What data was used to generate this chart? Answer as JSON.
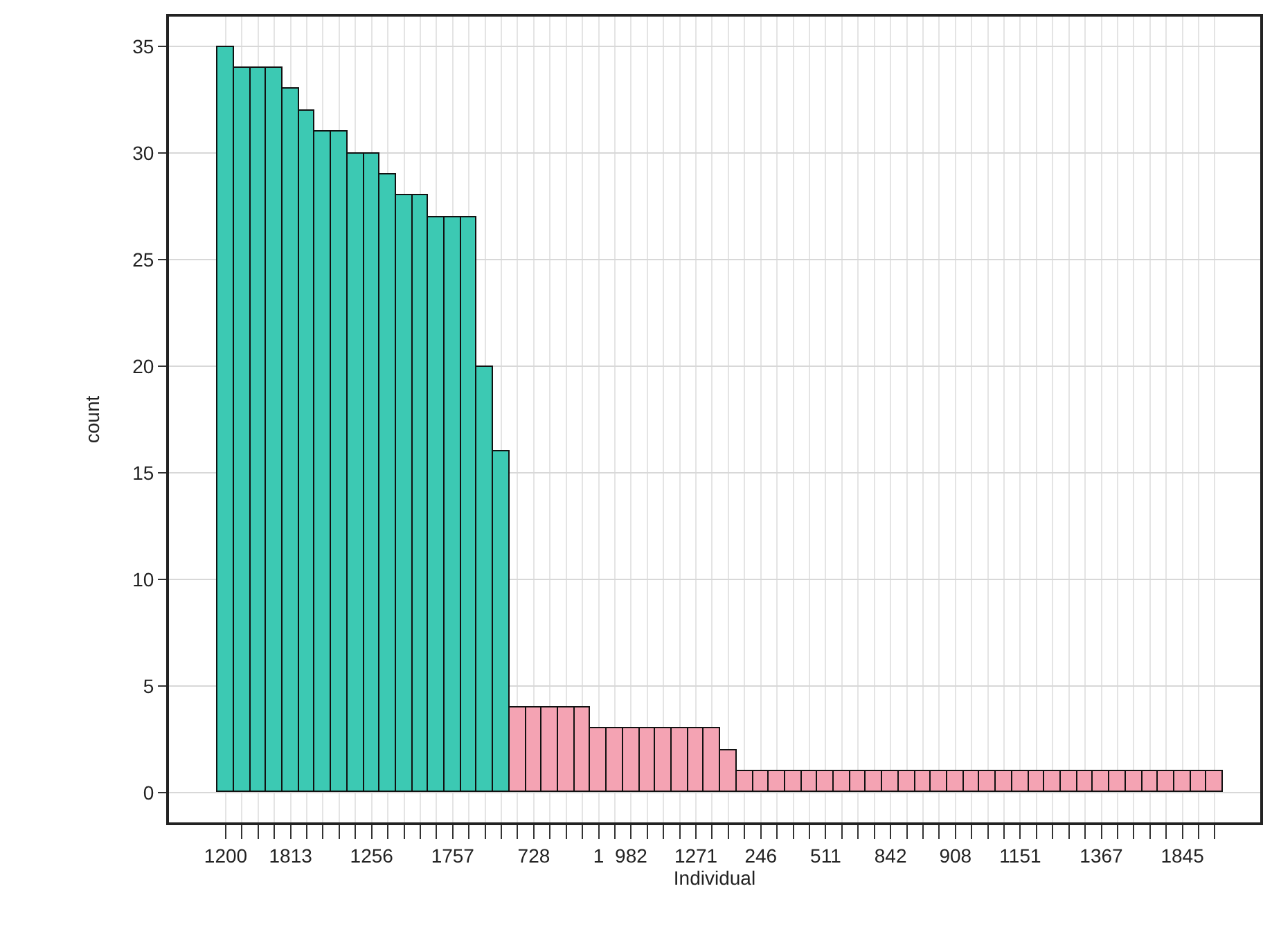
{
  "chart_data": {
    "type": "bar",
    "xlabel": "Individual",
    "ylabel": "count",
    "categories": [
      "1200",
      null,
      null,
      null,
      "1813",
      null,
      null,
      null,
      null,
      "1256",
      null,
      null,
      null,
      null,
      "1757",
      null,
      null,
      null,
      null,
      "728",
      null,
      null,
      null,
      "1",
      null,
      "982",
      null,
      null,
      null,
      "1271",
      null,
      null,
      null,
      "246",
      null,
      null,
      null,
      "511",
      null,
      null,
      null,
      "842",
      null,
      null,
      null,
      "908",
      null,
      null,
      null,
      "1151",
      null,
      null,
      null,
      null,
      "1367",
      null,
      null,
      null,
      null,
      "1845",
      null,
      null
    ],
    "values": [
      35,
      34,
      34,
      34,
      33,
      32,
      31,
      31,
      30,
      30,
      29,
      28,
      28,
      27,
      27,
      27,
      20,
      16,
      4,
      4,
      4,
      4,
      4,
      3,
      3,
      3,
      3,
      3,
      3,
      3,
      3,
      2,
      1,
      1,
      1,
      1,
      1,
      1,
      1,
      1,
      1,
      1,
      1,
      1,
      1,
      1,
      1,
      1,
      1,
      1,
      1,
      1,
      1,
      1,
      1,
      1,
      1,
      1,
      1,
      1,
      1,
      1
    ],
    "colors": [
      "#3cc9b3",
      "#3cc9b3",
      "#3cc9b3",
      "#3cc9b3",
      "#3cc9b3",
      "#3cc9b3",
      "#3cc9b3",
      "#3cc9b3",
      "#3cc9b3",
      "#3cc9b3",
      "#3cc9b3",
      "#3cc9b3",
      "#3cc9b3",
      "#3cc9b3",
      "#3cc9b3",
      "#3cc9b3",
      "#3cc9b3",
      "#3cc9b3",
      "#f4a3b3",
      "#f4a3b3",
      "#f4a3b3",
      "#f4a3b3",
      "#f4a3b3",
      "#f4a3b3",
      "#f4a3b3",
      "#f4a3b3",
      "#f4a3b3",
      "#f4a3b3",
      "#f4a3b3",
      "#f4a3b3",
      "#f4a3b3",
      "#f4a3b3",
      "#f4a3b3",
      "#f4a3b3",
      "#f4a3b3",
      "#f4a3b3",
      "#f4a3b3",
      "#f4a3b3",
      "#f4a3b3",
      "#f4a3b3",
      "#f4a3b3",
      "#f4a3b3",
      "#f4a3b3",
      "#f4a3b3",
      "#f4a3b3",
      "#f4a3b3",
      "#f4a3b3",
      "#f4a3b3",
      "#f4a3b3",
      "#f4a3b3",
      "#f4a3b3",
      "#f4a3b3",
      "#f4a3b3",
      "#f4a3b3",
      "#f4a3b3",
      "#f4a3b3",
      "#f4a3b3",
      "#f4a3b3",
      "#f4a3b3",
      "#f4a3b3",
      "#f4a3b3",
      "#f4a3b3"
    ],
    "ylim": [
      -1.4,
      36.4
    ],
    "yticks": [
      0,
      5,
      10,
      15,
      20,
      25,
      30,
      35
    ],
    "grid": true
  }
}
